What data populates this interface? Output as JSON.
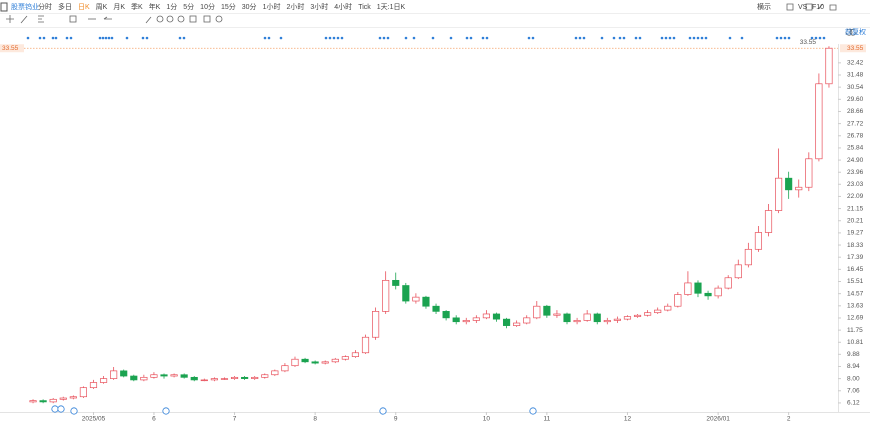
{
  "toolbar": {
    "stock": "股票钨业",
    "tabs": [
      "分时",
      "多日",
      "日K",
      "周K",
      "月K",
      "季K",
      "年K",
      "1分",
      "5分",
      "10分",
      "15分",
      "30分",
      "1小时",
      "2小时",
      "3小时",
      "4小时",
      "Tick",
      "1天:1日K"
    ],
    "right": [
      "横示",
      "VS",
      "F10"
    ]
  },
  "chart_data": {
    "type": "candlestick",
    "adjust_label": "前复权",
    "last_price": 33.55,
    "up_color": "#e8505b",
    "down_color": "#1aa350",
    "categories": [
      null,
      null,
      null,
      null,
      null,
      null,
      "2025/05",
      null,
      null,
      null,
      null,
      null,
      "6",
      null,
      null,
      null,
      null,
      null,
      null,
      null,
      "7",
      null,
      null,
      null,
      null,
      null,
      null,
      null,
      "8",
      null,
      null,
      null,
      null,
      null,
      null,
      null,
      "9",
      null,
      null,
      null,
      null,
      null,
      null,
      null,
      null,
      "10",
      null,
      null,
      null,
      null,
      null,
      "11",
      null,
      null,
      null,
      null,
      null,
      null,
      null,
      "12",
      null,
      null,
      null,
      null,
      null,
      null,
      null,
      null,
      "2026/01",
      null,
      null,
      null,
      null,
      null,
      null,
      "2",
      null,
      null,
      null,
      null
    ],
    "open": [
      6.2,
      6.3,
      6.2,
      6.4,
      6.5,
      6.6,
      7.3,
      7.7,
      8.0,
      8.6,
      8.2,
      7.9,
      8.1,
      8.3,
      8.2,
      8.3,
      8.1,
      7.9,
      7.9,
      8.0,
      8.0,
      8.1,
      8.0,
      8.1,
      8.3,
      8.6,
      9.0,
      9.5,
      9.3,
      9.2,
      9.3,
      9.5,
      9.7,
      10.0,
      11.2,
      13.2,
      15.6,
      15.2,
      14.0,
      14.3,
      13.6,
      13.2,
      12.7,
      12.4,
      12.5,
      12.7,
      13.0,
      12.6,
      12.1,
      12.3,
      12.7,
      13.6,
      12.9,
      13.0,
      12.4,
      12.5,
      13.0,
      12.4,
      12.5,
      12.6,
      12.8,
      12.9,
      13.1,
      13.3,
      13.6,
      14.5,
      15.4,
      14.6,
      14.4,
      15.0,
      15.8,
      16.8,
      18.0,
      19.3,
      21.0,
      23.5,
      22.6,
      22.8,
      25.0,
      30.8
    ],
    "high": [
      6.4,
      6.4,
      6.5,
      6.6,
      6.7,
      7.4,
      7.9,
      8.2,
      8.9,
      8.7,
      8.3,
      8.3,
      8.5,
      8.4,
      8.4,
      8.4,
      8.2,
      8.0,
      8.1,
      8.1,
      8.2,
      8.2,
      8.2,
      8.4,
      8.7,
      9.2,
      9.7,
      9.6,
      9.4,
      9.4,
      9.6,
      9.8,
      10.2,
      11.4,
      13.5,
      16.3,
      16.2,
      15.4,
      14.6,
      14.4,
      13.8,
      13.3,
      12.9,
      12.7,
      12.9,
      13.3,
      13.1,
      12.7,
      12.5,
      12.9,
      14.0,
      13.7,
      13.3,
      13.1,
      12.7,
      13.3,
      13.1,
      12.7,
      12.8,
      12.9,
      13.0,
      13.3,
      13.5,
      13.8,
      14.7,
      16.3,
      15.6,
      14.8,
      15.2,
      16.0,
      17.2,
      18.5,
      19.8,
      21.5,
      25.8,
      24.0,
      23.4,
      25.5,
      31.6,
      33.7
    ],
    "low": [
      6.1,
      6.1,
      6.1,
      6.3,
      6.4,
      6.5,
      7.2,
      7.6,
      7.9,
      8.1,
      7.8,
      7.8,
      8.0,
      8.0,
      8.1,
      8.0,
      7.8,
      7.8,
      7.8,
      7.9,
      7.9,
      7.9,
      7.9,
      8.0,
      8.2,
      8.5,
      8.9,
      9.2,
      9.1,
      9.1,
      9.2,
      9.4,
      9.6,
      9.9,
      11.0,
      13.0,
      14.9,
      13.8,
      13.8,
      13.4,
      13.0,
      12.5,
      12.2,
      12.2,
      12.3,
      12.6,
      12.4,
      11.9,
      12.0,
      12.2,
      12.6,
      12.7,
      12.7,
      12.2,
      12.2,
      12.4,
      12.2,
      12.2,
      12.3,
      12.5,
      12.7,
      12.8,
      13.0,
      13.2,
      13.5,
      14.4,
      14.3,
      14.1,
      14.2,
      14.9,
      15.7,
      16.6,
      17.8,
      19.0,
      20.8,
      21.9,
      22.0,
      22.5,
      24.8,
      30.5
    ],
    "close": [
      6.3,
      6.2,
      6.4,
      6.5,
      6.6,
      7.3,
      7.7,
      8.0,
      8.6,
      8.2,
      7.9,
      8.1,
      8.3,
      8.2,
      8.3,
      8.1,
      7.9,
      7.9,
      8.0,
      8.0,
      8.1,
      8.0,
      8.1,
      8.3,
      8.6,
      9.0,
      9.5,
      9.3,
      9.2,
      9.3,
      9.5,
      9.7,
      10.0,
      11.2,
      13.2,
      15.6,
      15.2,
      14.0,
      14.3,
      13.6,
      13.2,
      12.7,
      12.4,
      12.5,
      12.7,
      13.0,
      12.6,
      12.1,
      12.3,
      12.7,
      13.6,
      12.9,
      13.0,
      12.4,
      12.5,
      13.0,
      12.4,
      12.5,
      12.6,
      12.8,
      12.9,
      13.1,
      13.3,
      13.6,
      14.5,
      15.4,
      14.6,
      14.4,
      15.0,
      15.8,
      16.8,
      18.0,
      19.3,
      21.0,
      23.5,
      22.6,
      22.8,
      25.0,
      30.8,
      33.55
    ],
    "ylim": [
      4.8,
      33.8
    ],
    "yticks": [
      32.42,
      31.48,
      30.54,
      {
        "value": 29.6,
        "label": "29.60"
      },
      28.66,
      27.72,
      26.78,
      25.84,
      {
        "value": 24.9,
        "label": "24.90"
      },
      23.96,
      23.03,
      22.09,
      21.15,
      20.21,
      19.27,
      18.33,
      17.39,
      16.45,
      15.51,
      14.57,
      13.63,
      12.69,
      11.75,
      10.81,
      9.88,
      8.94,
      {
        "value": 8,
        "label": "8.00"
      },
      7.06,
      6.12
    ]
  }
}
